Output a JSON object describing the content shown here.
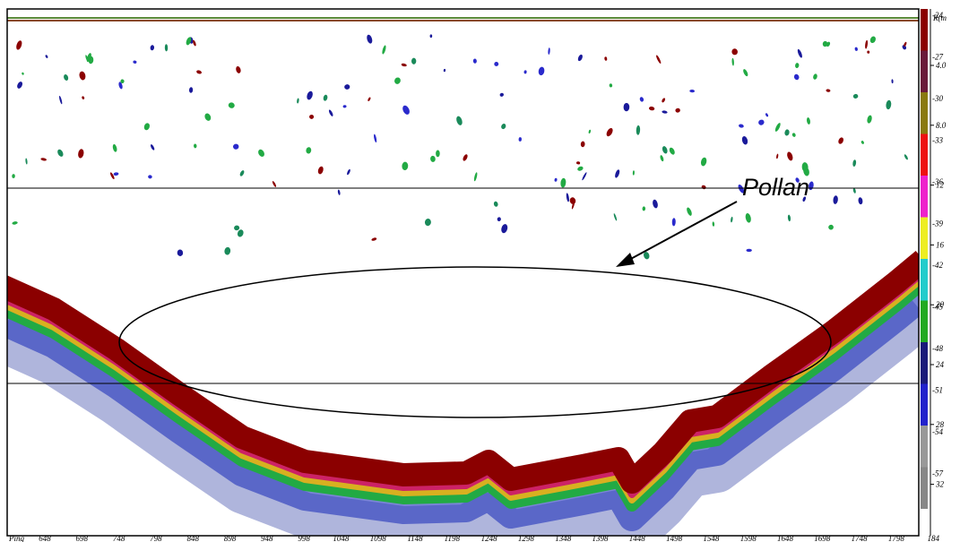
{
  "annotation": "Pollan",
  "color_scale": {
    "ticks": [
      "-24",
      "-27",
      "-30",
      "-33",
      "-36",
      "-39",
      "-42",
      "-45",
      "-48",
      "-51",
      "-54",
      "-57"
    ]
  },
  "depth_axis": {
    "label": "R(m",
    "ticks": [
      "4.0",
      "8.0",
      "12",
      "16",
      "20",
      "24",
      "28",
      "32"
    ]
  },
  "ping_axis": {
    "label": "Ping",
    "ticks": [
      "648",
      "698",
      "748",
      "798",
      "848",
      "898",
      "948",
      "998",
      "1048",
      "1098",
      "1148",
      "1198",
      "1248",
      "1298",
      "1348",
      "1398",
      "1448",
      "1498",
      "1548",
      "1598",
      "1648",
      "1698",
      "1748",
      "1798",
      "184"
    ]
  }
}
